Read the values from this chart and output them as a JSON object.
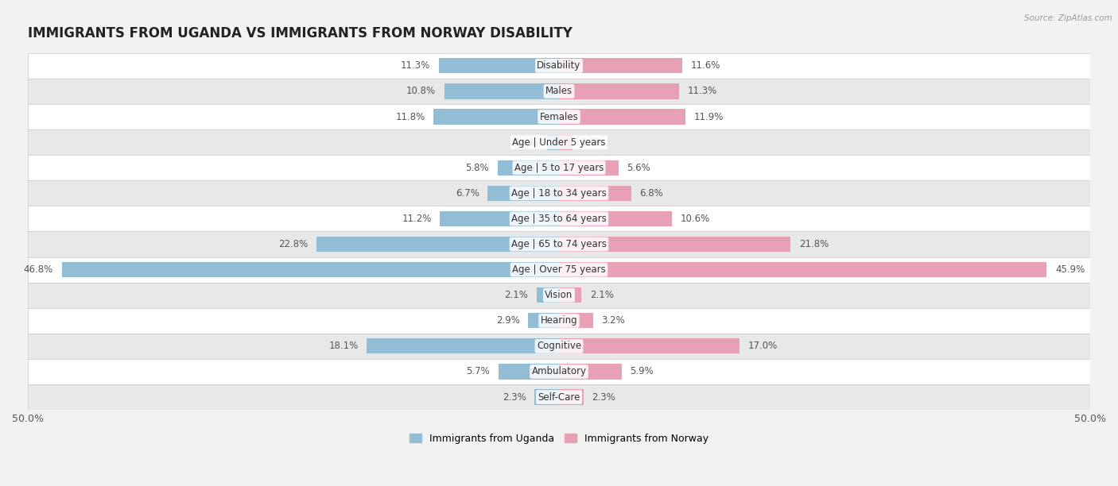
{
  "title": "IMMIGRANTS FROM UGANDA VS IMMIGRANTS FROM NORWAY DISABILITY",
  "source": "Source: ZipAtlas.com",
  "categories": [
    "Disability",
    "Males",
    "Females",
    "Age | Under 5 years",
    "Age | 5 to 17 years",
    "Age | 18 to 34 years",
    "Age | 35 to 64 years",
    "Age | 65 to 74 years",
    "Age | Over 75 years",
    "Vision",
    "Hearing",
    "Cognitive",
    "Ambulatory",
    "Self-Care"
  ],
  "uganda_values": [
    11.3,
    10.8,
    11.8,
    1.1,
    5.8,
    6.7,
    11.2,
    22.8,
    46.8,
    2.1,
    2.9,
    18.1,
    5.7,
    2.3
  ],
  "norway_values": [
    11.6,
    11.3,
    11.9,
    1.3,
    5.6,
    6.8,
    10.6,
    21.8,
    45.9,
    2.1,
    3.2,
    17.0,
    5.9,
    2.3
  ],
  "uganda_color": "#93bdd4",
  "norway_color": "#e8a0b4",
  "uganda_label": "Immigrants from Uganda",
  "norway_label": "Immigrants from Norway",
  "axis_limit": 50.0,
  "background_color": "#f2f2f2",
  "row_color_odd": "#ffffff",
  "row_color_even": "#e8e8e8",
  "title_fontsize": 12,
  "label_fontsize": 8.5,
  "value_fontsize": 8.5,
  "legend_fontsize": 9,
  "axis_label_fontsize": 9,
  "bar_height": 0.6
}
